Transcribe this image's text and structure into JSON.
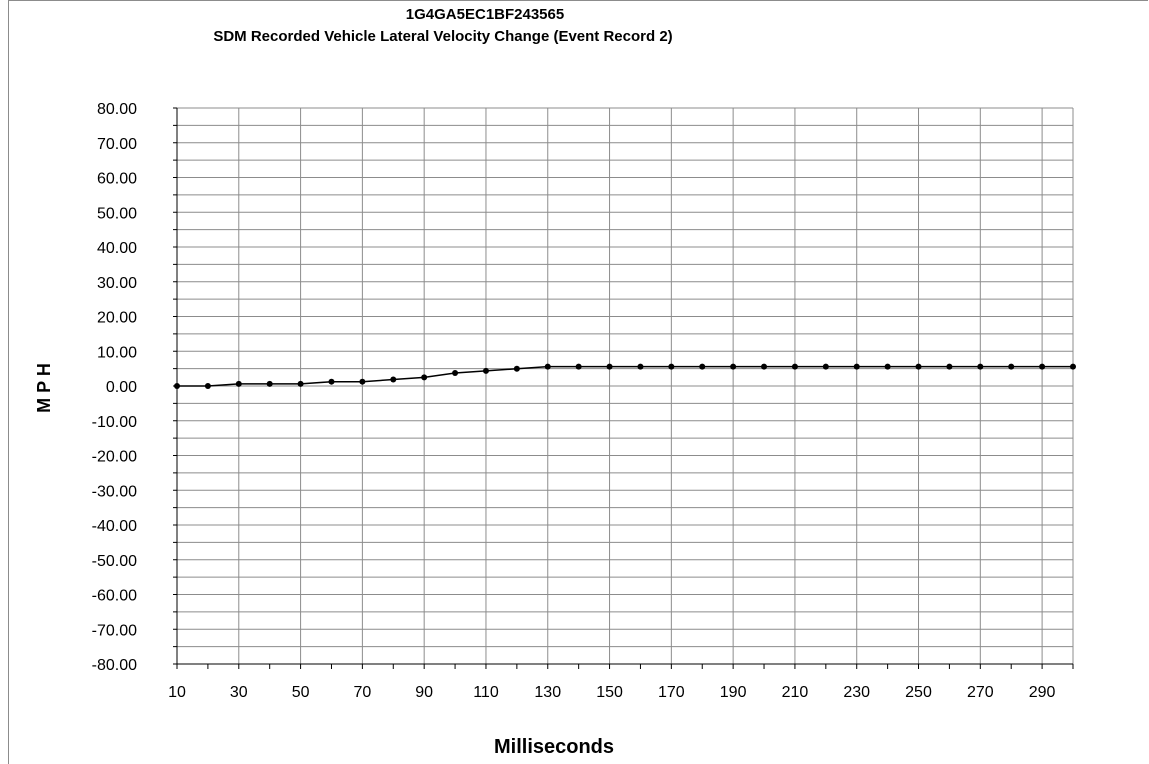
{
  "chart_data": {
    "type": "line",
    "title": "1G4GA5EC1BF243565",
    "subtitle": "SDM Recorded Vehicle Lateral Velocity Change (Event Record 2)",
    "xlabel": "Milliseconds",
    "ylabel": "M P H",
    "xlim": [
      10,
      300
    ],
    "ylim": [
      -80,
      80
    ],
    "x_ticks": [
      "10",
      "30",
      "50",
      "70",
      "90",
      "110",
      "130",
      "150",
      "170",
      "190",
      "210",
      "230",
      "250",
      "270",
      "290"
    ],
    "y_ticks": [
      "80.00",
      "70.00",
      "60.00",
      "50.00",
      "40.00",
      "30.00",
      "20.00",
      "10.00",
      "0.00",
      "-10.00",
      "-20.00",
      "-30.00",
      "-40.00",
      "-50.00",
      "-60.00",
      "-70.00",
      "-80.00"
    ],
    "grid": true,
    "series": [
      {
        "color": "#000000",
        "x": [
          10,
          20,
          30,
          40,
          50,
          60,
          70,
          80,
          90,
          100,
          110,
          120,
          130,
          140,
          150,
          160,
          170,
          180,
          190,
          200,
          210,
          220,
          230,
          240,
          250,
          260,
          270,
          280,
          290,
          300
        ],
        "values": [
          0,
          0,
          0.62,
          0.62,
          0.62,
          1.24,
          1.24,
          1.86,
          2.48,
          3.73,
          4.35,
          4.97,
          5.59,
          5.59,
          5.59,
          5.59,
          5.59,
          5.59,
          5.59,
          5.59,
          5.59,
          5.59,
          5.59,
          5.59,
          5.59,
          5.59,
          5.59,
          5.59,
          5.59,
          5.59
        ]
      }
    ]
  }
}
